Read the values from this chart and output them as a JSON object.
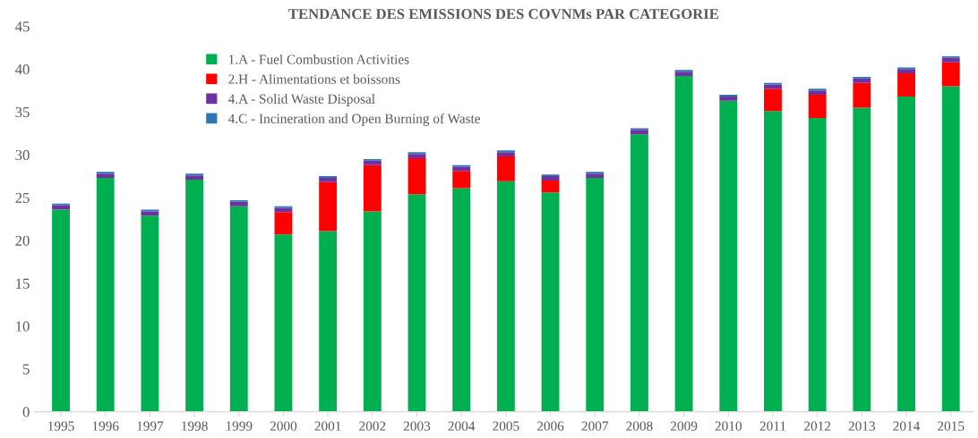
{
  "chart_data": {
    "type": "bar",
    "title": "TENDANCE DES EMISSIONS DES COVNMs PAR CATEGORIE",
    "stacked": true,
    "categories": [
      "1995",
      "1996",
      "1997",
      "1998",
      "1999",
      "2000",
      "2001",
      "2002",
      "2003",
      "2004",
      "2005",
      "2006",
      "2007",
      "2008",
      "2009",
      "2010",
      "2011",
      "2012",
      "2013",
      "2014",
      "2015"
    ],
    "series": [
      {
        "name": "1.A - Fuel Combustion Activities",
        "color": "#00b050",
        "values": [
          23.6,
          27.3,
          22.9,
          27.1,
          24.0,
          20.7,
          21.1,
          23.4,
          25.4,
          26.1,
          26.9,
          25.6,
          27.3,
          32.4,
          39.2,
          36.3,
          35.1,
          34.3,
          35.5,
          36.8,
          38.0
        ]
      },
      {
        "name": "2.H - Alimentations et boissons",
        "color": "#ff0000",
        "values": [
          0,
          0,
          0,
          0,
          0,
          2.6,
          5.7,
          5.4,
          4.2,
          2.0,
          2.9,
          1.4,
          0,
          0,
          0,
          0,
          2.6,
          2.7,
          2.9,
          2.7,
          2.8
        ]
      },
      {
        "name": "4.A - Solid Waste Disposal",
        "color": "#7030a0",
        "values": [
          0.5,
          0.5,
          0.5,
          0.5,
          0.5,
          0.5,
          0.5,
          0.5,
          0.5,
          0.5,
          0.5,
          0.5,
          0.5,
          0.5,
          0.5,
          0.5,
          0.5,
          0.5,
          0.5,
          0.5,
          0.5
        ]
      },
      {
        "name": "4.C - Incineration and Open Burning of Waste",
        "color": "#2e75b6",
        "values": [
          0.2,
          0.2,
          0.2,
          0.2,
          0.2,
          0.2,
          0.2,
          0.2,
          0.2,
          0.2,
          0.2,
          0.2,
          0.2,
          0.2,
          0.2,
          0.2,
          0.2,
          0.2,
          0.2,
          0.2,
          0.2
        ]
      }
    ],
    "ylim": [
      0,
      45
    ],
    "yticks": [
      0,
      5,
      10,
      15,
      20,
      25,
      30,
      35,
      40,
      45
    ],
    "grid": false,
    "legend": "top left"
  }
}
